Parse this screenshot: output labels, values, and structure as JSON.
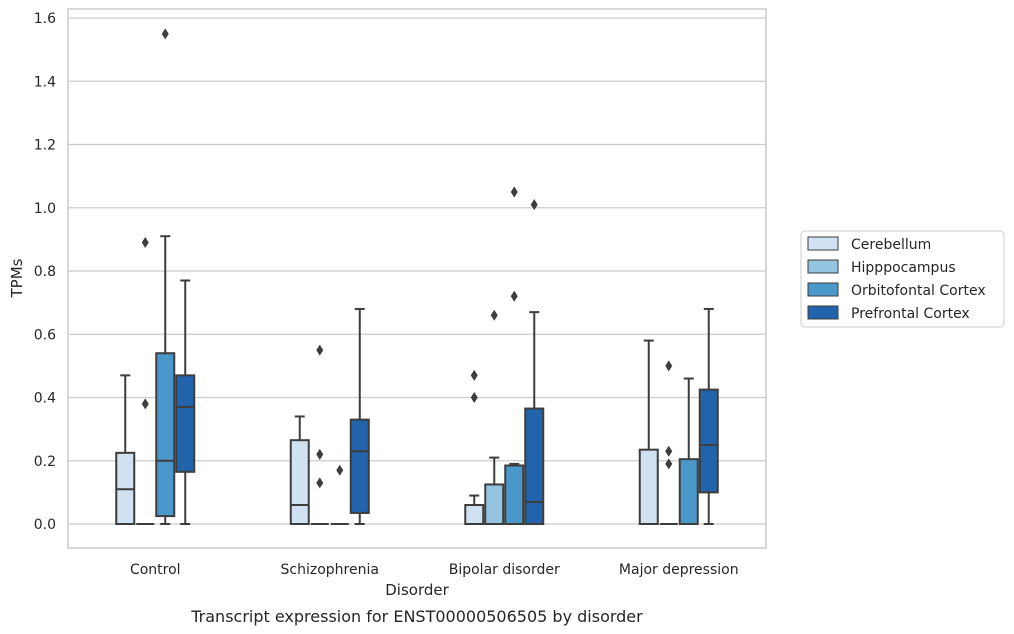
{
  "chart_data": {
    "type": "box",
    "title": "",
    "caption": "Transcript expression for ENST00000506505 by disorder",
    "xlabel": "Disorder",
    "ylabel": "TPMs",
    "ylim": [
      -0.075,
      1.63
    ],
    "yticks": [
      "0.0",
      "0.2",
      "0.4",
      "0.6",
      "0.8",
      "1.0",
      "1.2",
      "1.4",
      "1.6"
    ],
    "grid": "horizontal",
    "legend_position": "right",
    "categories": [
      "Control",
      "Schizophrenia",
      "Bipolar disorder",
      "Major depression"
    ],
    "series": [
      {
        "name": "Cerebellum",
        "color": "#d0e1f2",
        "boxes": [
          {
            "whisker_low": 0,
            "q1": 0,
            "median": 0.11,
            "q3": 0.225,
            "whisker_high": 0.47,
            "outliers": []
          },
          {
            "whisker_low": 0,
            "q1": 0,
            "median": 0.06,
            "q3": 0.265,
            "whisker_high": 0.34,
            "outliers": []
          },
          {
            "whisker_low": 0,
            "q1": 0,
            "median": 0,
            "q3": 0.06,
            "whisker_high": 0.09,
            "outliers": [
              0.4,
              0.47
            ]
          },
          {
            "whisker_low": 0,
            "q1": 0,
            "median": 0,
            "q3": 0.235,
            "whisker_high": 0.58,
            "outliers": []
          }
        ]
      },
      {
        "name": "Hipppocampus",
        "color": "#94c4df",
        "boxes": [
          {
            "whisker_low": 0,
            "q1": 0,
            "median": 0,
            "q3": 0,
            "whisker_high": 0,
            "outliers": [
              0.38,
              0.89
            ]
          },
          {
            "whisker_low": 0,
            "q1": 0,
            "median": 0,
            "q3": 0,
            "whisker_high": 0,
            "outliers": [
              0.13,
              0.22,
              0.55
            ]
          },
          {
            "whisker_low": 0,
            "q1": 0,
            "median": 0,
            "q3": 0.125,
            "whisker_high": 0.21,
            "outliers": [
              0.66
            ]
          },
          {
            "whisker_low": 0,
            "q1": 0,
            "median": 0,
            "q3": 0,
            "whisker_high": 0,
            "outliers": [
              0.19,
              0.23,
              0.5
            ]
          }
        ]
      },
      {
        "name": "Orbitofontal Cortex",
        "color": "#4a98c9",
        "boxes": [
          {
            "whisker_low": 0,
            "q1": 0.025,
            "median": 0.2,
            "q3": 0.54,
            "whisker_high": 0.91,
            "outliers": [
              1.55
            ]
          },
          {
            "whisker_low": 0,
            "q1": 0,
            "median": 0,
            "q3": 0,
            "whisker_high": 0,
            "outliers": [
              0.17
            ]
          },
          {
            "whisker_low": 0,
            "q1": 0,
            "median": 0.185,
            "q3": 0.185,
            "whisker_high": 0.19,
            "outliers": [
              0.72,
              1.05
            ]
          },
          {
            "whisker_low": 0,
            "q1": 0,
            "median": 0,
            "q3": 0.205,
            "whisker_high": 0.46,
            "outliers": []
          }
        ]
      },
      {
        "name": "Prefrontal Cortex",
        "color": "#2164ab",
        "boxes": [
          {
            "whisker_low": 0,
            "q1": 0.165,
            "median": 0.37,
            "q3": 0.47,
            "whisker_high": 0.77,
            "outliers": []
          },
          {
            "whisker_low": 0,
            "q1": 0.035,
            "median": 0.23,
            "q3": 0.33,
            "whisker_high": 0.68,
            "outliers": []
          },
          {
            "whisker_low": 0,
            "q1": 0,
            "median": 0.07,
            "q3": 0.365,
            "whisker_high": 0.67,
            "outliers": [
              1.01
            ]
          },
          {
            "whisker_low": 0,
            "q1": 0.1,
            "median": 0.25,
            "q3": 0.425,
            "whisker_high": 0.68,
            "outliers": []
          }
        ]
      }
    ]
  }
}
